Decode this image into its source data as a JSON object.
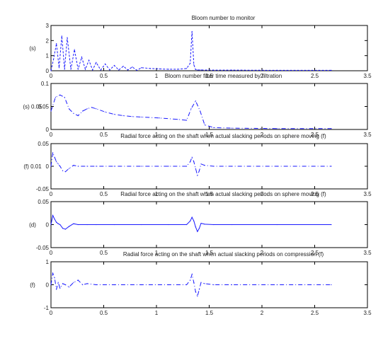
{
  "chart_data": [
    {
      "type": "line",
      "title": "Bloom number to monitor",
      "ylabel": "(s)",
      "xlim": [
        0,
        3.5
      ],
      "ylim": [
        0,
        3
      ],
      "xticks": [
        "0",
        "0.5",
        "1",
        "1.5",
        "2",
        "2.5",
        "3.5"
      ],
      "yticks": [
        "0",
        "1",
        "2",
        "3"
      ],
      "style": "dashed",
      "x": [
        0.0,
        0.03,
        0.06,
        0.09,
        0.12,
        0.15,
        0.18,
        0.22,
        0.26,
        0.3,
        0.34,
        0.38,
        0.42,
        0.46,
        0.5,
        0.55,
        0.6,
        0.65,
        0.7,
        0.75,
        0.8,
        0.85,
        0.9,
        0.95,
        1.0,
        1.1,
        1.2,
        1.3,
        1.4,
        1.5,
        1.54,
        1.56,
        1.58,
        1.6,
        1.62,
        1.66,
        1.8,
        2.0,
        2.5,
        3.1
      ],
      "y": [
        0.0,
        0.8,
        1.8,
        0.2,
        2.3,
        0.1,
        2.2,
        0.1,
        1.4,
        0.1,
        0.9,
        0.1,
        0.7,
        0.05,
        0.55,
        0.05,
        0.45,
        0.05,
        0.35,
        0.05,
        0.3,
        0.05,
        0.25,
        0.03,
        0.2,
        0.15,
        0.12,
        0.1,
        0.1,
        0.15,
        0.5,
        2.6,
        0.4,
        0.08,
        0.05,
        0.05,
        0.04,
        0.04,
        0.03,
        0.03
      ]
    },
    {
      "type": "line",
      "title": "Bloom number filter time measured by filtration",
      "ylabel": "(s) 0.05",
      "xlim": [
        0,
        3.5
      ],
      "ylim": [
        0,
        0.1
      ],
      "xticks": [
        "0",
        "0.5",
        "1",
        "1.5",
        "2",
        "2.5",
        "3.5"
      ],
      "yticks": [
        "0",
        "0.05",
        "0.1"
      ],
      "style": "dashdot",
      "x": [
        0.0,
        0.05,
        0.1,
        0.15,
        0.2,
        0.25,
        0.3,
        0.35,
        0.4,
        0.45,
        0.5,
        0.6,
        0.7,
        0.8,
        0.9,
        1.0,
        1.2,
        1.4,
        1.5,
        1.55,
        1.6,
        1.65,
        1.7,
        1.8,
        2.0,
        2.5,
        3.1
      ],
      "y": [
        0.04,
        0.07,
        0.075,
        0.07,
        0.045,
        0.035,
        0.03,
        0.04,
        0.045,
        0.048,
        0.045,
        0.038,
        0.033,
        0.03,
        0.028,
        0.027,
        0.025,
        0.022,
        0.02,
        0.045,
        0.062,
        0.04,
        0.01,
        0.004,
        0.003,
        0.002,
        0.002
      ]
    },
    {
      "type": "line",
      "title": "Radial force acting on the shaft when actual slacking periods on sphere moving (f)",
      "ylabel": "(f) 0.01",
      "xlim": [
        0,
        3.5
      ],
      "ylim": [
        -0.05,
        0.05
      ],
      "xticks": [
        "0",
        "0.5",
        "1",
        "1.5",
        "2",
        "2.5",
        "3.5"
      ],
      "yticks": [
        "-0.05",
        "0",
        "0.05"
      ],
      "style": "dashdot",
      "x": [
        0.0,
        0.02,
        0.04,
        0.06,
        0.08,
        0.1,
        0.13,
        0.16,
        0.2,
        0.25,
        0.3,
        0.4,
        0.5,
        0.7,
        1.0,
        1.3,
        1.5,
        1.54,
        1.56,
        1.58,
        1.6,
        1.62,
        1.64,
        1.66,
        1.7,
        1.8,
        2.0,
        2.5,
        3.1
      ],
      "y": [
        0.0,
        0.03,
        0.02,
        0.01,
        0.005,
        0.0,
        -0.01,
        -0.012,
        -0.005,
        0.002,
        0.0,
        0.0,
        0.0,
        0.0,
        0.0,
        0.0,
        0.0,
        0.01,
        0.02,
        0.01,
        -0.005,
        -0.02,
        -0.01,
        0.005,
        0.002,
        0.0,
        0.0,
        0.0,
        0.0
      ]
    },
    {
      "type": "line",
      "title": "Radial force acting on the shaft when actual slacking periods on sphere moving (f)",
      "ylabel": "(d)",
      "xlim": [
        0,
        3.5
      ],
      "ylim": [
        -0.05,
        0.05
      ],
      "xticks": [
        "0",
        "0.5",
        "1",
        "1.5",
        "2",
        "2.5",
        "3.5"
      ],
      "yticks": [
        "-0.05",
        "0",
        "0.05"
      ],
      "style": "solid",
      "x": [
        0.0,
        0.02,
        0.04,
        0.06,
        0.08,
        0.1,
        0.13,
        0.16,
        0.2,
        0.25,
        0.3,
        0.4,
        0.5,
        0.7,
        1.0,
        1.3,
        1.5,
        1.54,
        1.56,
        1.58,
        1.6,
        1.62,
        1.64,
        1.66,
        1.7,
        1.8,
        2.0,
        2.5,
        3.1
      ],
      "y": [
        0.0,
        0.02,
        0.012,
        0.005,
        0.002,
        0.0,
        -0.008,
        -0.01,
        -0.004,
        0.002,
        0.0,
        0.0,
        0.0,
        0.0,
        0.0,
        0.0,
        0.0,
        0.008,
        0.016,
        0.008,
        -0.005,
        -0.015,
        -0.008,
        0.003,
        0.001,
        0.0,
        0.0,
        0.0,
        0.0
      ]
    },
    {
      "type": "line",
      "title": "Radial force acting on the shaft when actual slacking periods on compression (f)",
      "ylabel": "(f)",
      "xlim": [
        0,
        3.5
      ],
      "ylim": [
        -1,
        1
      ],
      "xticks": [
        "0",
        "0.5",
        "1",
        "1.5",
        "2",
        "2.5",
        "3.5"
      ],
      "yticks": [
        "-1",
        "0",
        "1"
      ],
      "style": "dashdot",
      "x": [
        0.0,
        0.02,
        0.04,
        0.06,
        0.08,
        0.1,
        0.13,
        0.16,
        0.2,
        0.25,
        0.3,
        0.35,
        0.4,
        0.5,
        0.7,
        1.0,
        1.3,
        1.5,
        1.54,
        1.56,
        1.58,
        1.6,
        1.62,
        1.64,
        1.66,
        1.7,
        1.8,
        2.0,
        2.5,
        3.1
      ],
      "y": [
        0.0,
        0.5,
        0.3,
        -0.2,
        0.1,
        -0.15,
        0.05,
        0.0,
        -0.1,
        0.1,
        0.2,
        0.0,
        0.05,
        0.0,
        0.0,
        0.0,
        0.0,
        0.0,
        0.2,
        0.45,
        0.1,
        -0.3,
        -0.5,
        -0.2,
        0.1,
        0.05,
        0.0,
        0.0,
        0.0,
        0.0
      ]
    }
  ]
}
